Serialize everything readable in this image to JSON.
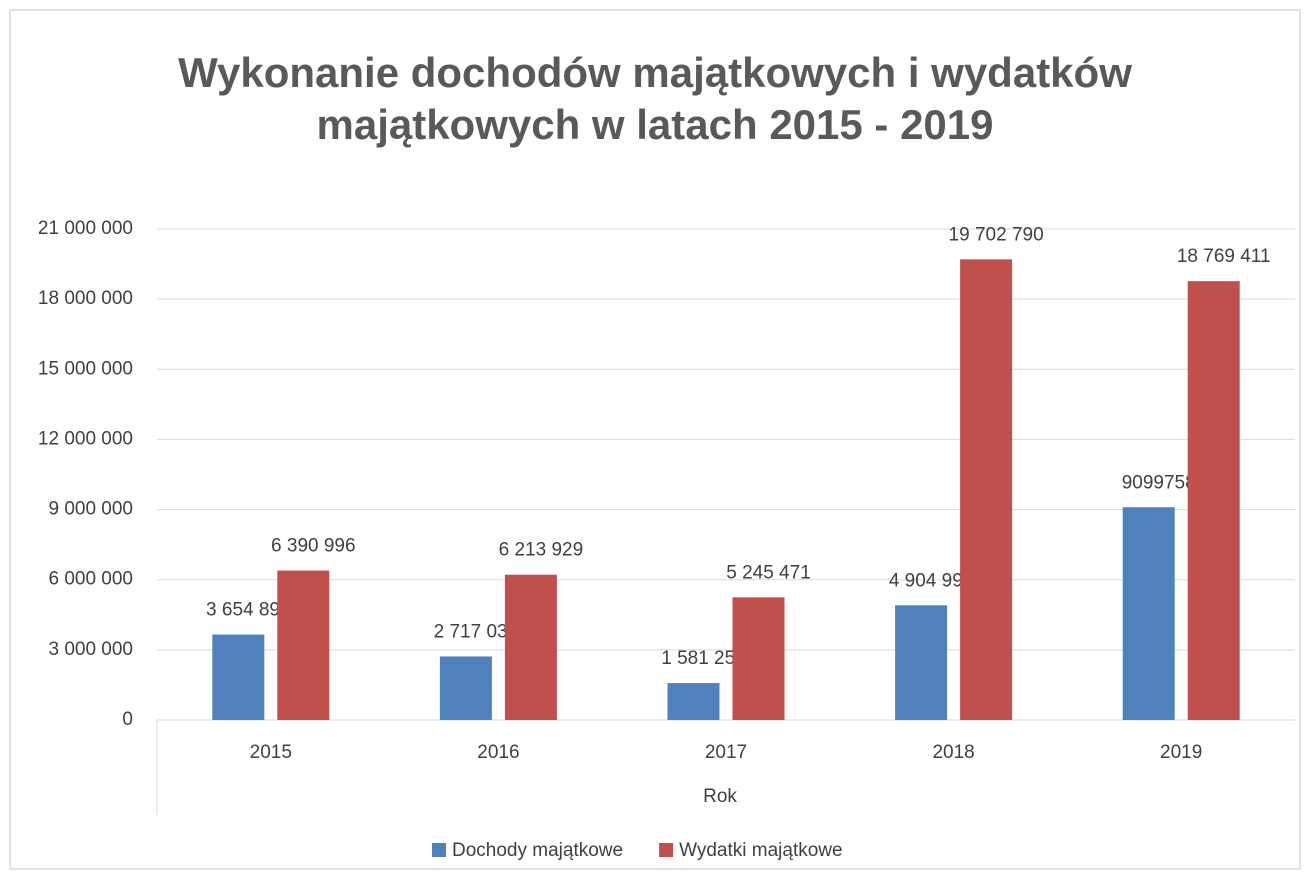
{
  "chart_data": {
    "type": "bar",
    "title": "Wykonanie dochodów majątkowych i wydatków majątkowych w latach 2015 - 2019",
    "x_label": "Rok",
    "categories": [
      "2015",
      "2016",
      "2017",
      "2018",
      "2019"
    ],
    "series": [
      {
        "name": "Dochody majątkowe",
        "color": "#4f81bd",
        "values": [
          3654899,
          2717034,
          1581250,
          4904996,
          9099758
        ],
        "value_labels": [
          "3 654 899",
          "2 717 034",
          "1 581 250",
          "4 904 996",
          "9099758"
        ]
      },
      {
        "name": "Wydatki majątkowe",
        "color": "#c0504d",
        "values": [
          6390996,
          6213929,
          5245471,
          19702790,
          18769411
        ],
        "value_labels": [
          "6 390 996",
          "6 213 929",
          "5 245 471",
          "19 702 790",
          "18 769 411"
        ]
      }
    ],
    "ylim": [
      0,
      21000000
    ],
    "yticks": [
      0,
      {
        "value": 3000000,
        "label": "3 000 000"
      },
      {
        "value": 6000000,
        "label": "6 000 000"
      },
      {
        "value": 9000000,
        "label": "9 000 000"
      },
      {
        "value": 12000000,
        "label": "12 000 000"
      },
      {
        "value": 15000000,
        "label": "15 000 000"
      },
      {
        "value": 18000000,
        "label": "18 000 000"
      },
      {
        "value": 21000000,
        "label": "21 000 000"
      }
    ],
    "grid": true,
    "legend": "bottom"
  }
}
